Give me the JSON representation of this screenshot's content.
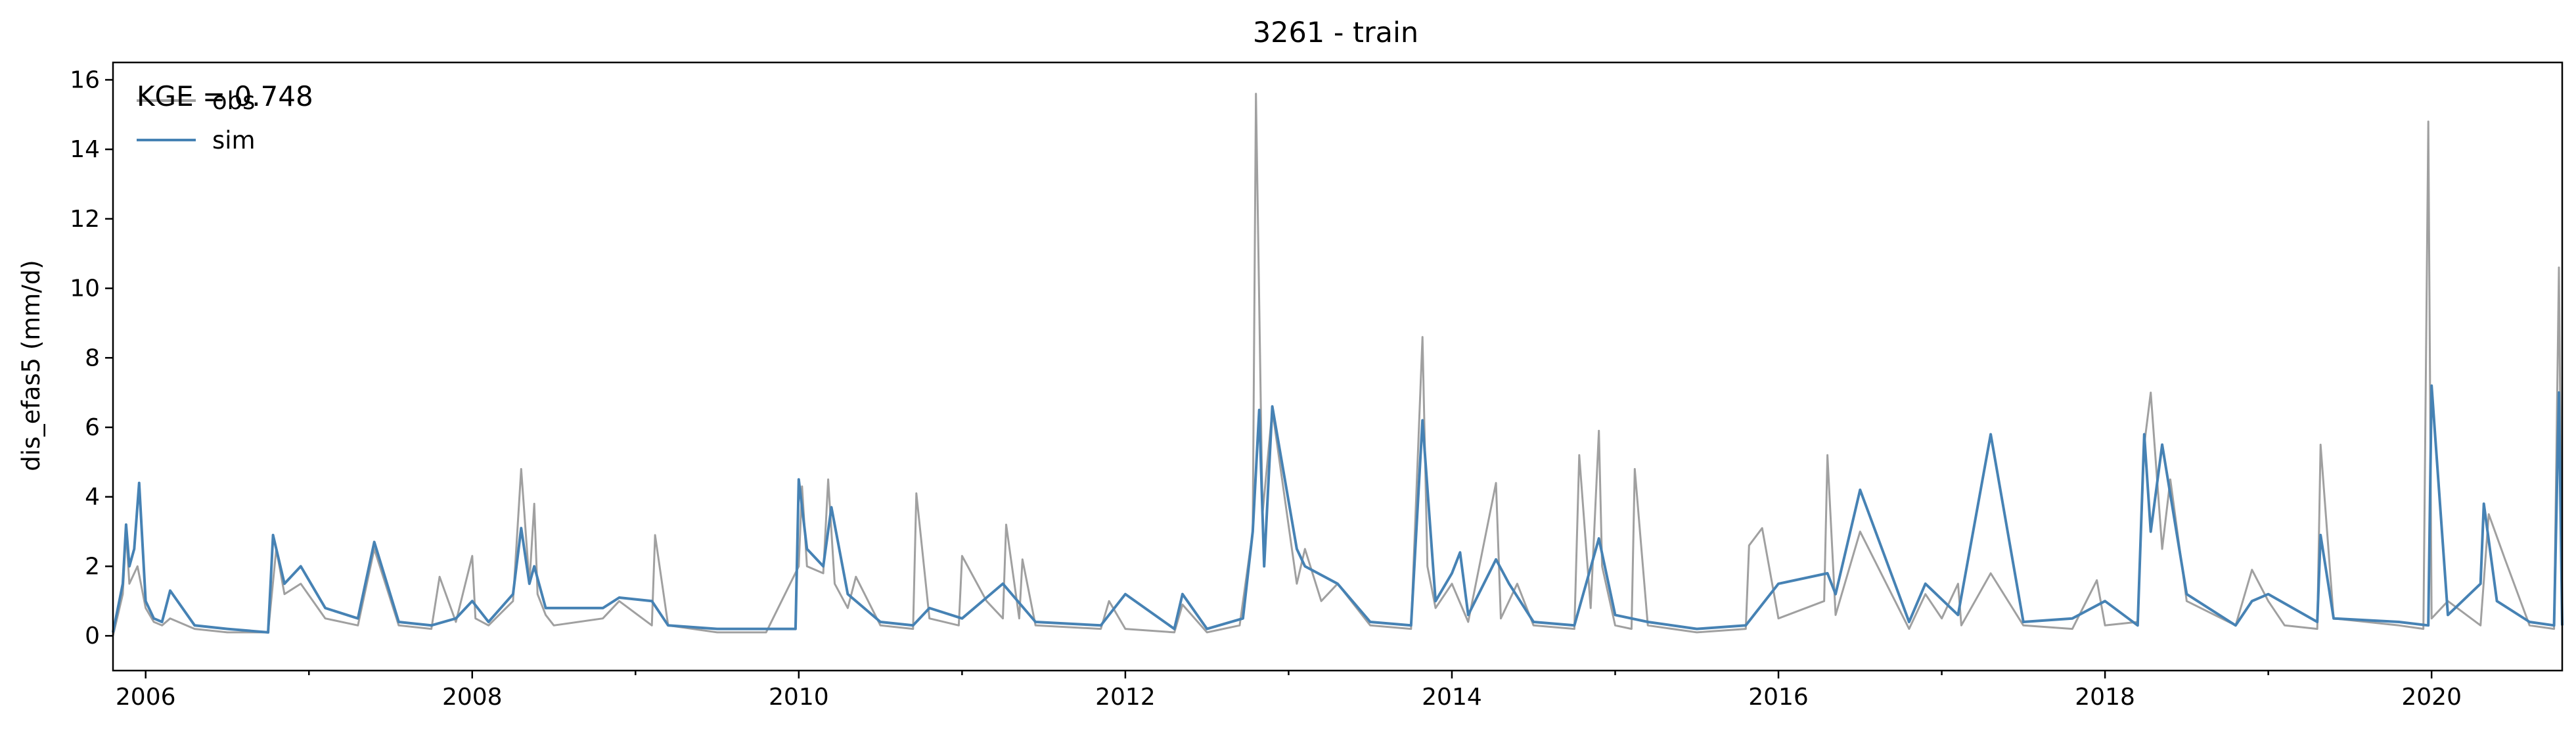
{
  "chart_data": {
    "type": "line",
    "title": "3261 - train",
    "xlabel": "",
    "ylabel": "dis_efas5 (mm/d)",
    "annotation": "KGE = 0.748",
    "xlim": [
      2005.8,
      2020.8
    ],
    "ylim": [
      -1,
      16.5
    ],
    "yticks": [
      0,
      2,
      4,
      6,
      8,
      10,
      12,
      14,
      16
    ],
    "yticklabels": [
      "0",
      "2",
      "4",
      "6",
      "8",
      "10",
      "12",
      "14",
      "16"
    ],
    "xticks": [
      2006,
      2008,
      2010,
      2012,
      2014,
      2016,
      2018,
      2020
    ],
    "xticklabels": [
      "2006",
      "2008",
      "2010",
      "2012",
      "2014",
      "2016",
      "2018",
      "2020"
    ],
    "grid": false,
    "legend_position": "top-left",
    "series": [
      {
        "name": "obs",
        "color": "#a0a0a0",
        "x": [
          2005.8,
          2005.86,
          2005.88,
          2005.9,
          2005.95,
          2006.0,
          2006.05,
          2006.1,
          2006.15,
          2006.3,
          2006.5,
          2006.75,
          2006.8,
          2006.85,
          2006.95,
          2007.1,
          2007.3,
          2007.4,
          2007.55,
          2007.75,
          2007.8,
          2007.9,
          2008.0,
          2008.02,
          2008.1,
          2008.25,
          2008.3,
          2008.35,
          2008.38,
          2008.4,
          2008.45,
          2008.5,
          2008.8,
          2008.9,
          2009.1,
          2009.12,
          2009.2,
          2009.5,
          2009.8,
          2010.0,
          2010.02,
          2010.05,
          2010.15,
          2010.18,
          2010.22,
          2010.3,
          2010.35,
          2010.5,
          2010.7,
          2010.72,
          2010.8,
          2010.98,
          2011.0,
          2011.15,
          2011.25,
          2011.27,
          2011.35,
          2011.37,
          2011.45,
          2011.85,
          2011.9,
          2012.0,
          2012.3,
          2012.35,
          2012.5,
          2012.7,
          2012.78,
          2012.8,
          2012.84,
          2012.9,
          2013.05,
          2013.1,
          2013.2,
          2013.3,
          2013.5,
          2013.75,
          2013.82,
          2013.85,
          2013.9,
          2014.0,
          2014.1,
          2014.27,
          2014.3,
          2014.4,
          2014.5,
          2014.75,
          2014.78,
          2014.85,
          2014.9,
          2014.92,
          2015.0,
          2015.1,
          2015.12,
          2015.2,
          2015.5,
          2015.8,
          2015.82,
          2015.9,
          2016.0,
          2016.28,
          2016.3,
          2016.35,
          2016.5,
          2016.8,
          2016.9,
          2017.0,
          2017.1,
          2017.12,
          2017.3,
          2017.5,
          2017.8,
          2017.95,
          2018.0,
          2018.2,
          2018.24,
          2018.28,
          2018.35,
          2018.4,
          2018.5,
          2018.8,
          2018.9,
          2019.0,
          2019.1,
          2019.3,
          2019.32,
          2019.4,
          2019.8,
          2019.95,
          2019.98,
          2020.0,
          2020.1,
          2020.3,
          2020.35,
          2020.45,
          2020.6,
          2020.75,
          2020.78,
          2020.8
        ],
        "y": [
          0.0,
          1.2,
          3.0,
          1.5,
          2.0,
          0.8,
          0.4,
          0.3,
          0.5,
          0.2,
          0.1,
          0.1,
          2.5,
          1.2,
          1.5,
          0.5,
          0.3,
          2.5,
          0.3,
          0.2,
          1.7,
          0.4,
          2.3,
          0.5,
          0.3,
          1.0,
          4.8,
          1.5,
          3.8,
          1.2,
          0.6,
          0.3,
          0.5,
          1.0,
          0.3,
          2.9,
          0.3,
          0.1,
          0.1,
          2.0,
          4.3,
          2.0,
          1.8,
          4.5,
          1.5,
          0.8,
          1.7,
          0.3,
          0.2,
          4.1,
          0.5,
          0.3,
          2.3,
          1.0,
          0.5,
          3.2,
          0.5,
          2.2,
          0.3,
          0.2,
          1.0,
          0.2,
          0.1,
          0.9,
          0.1,
          0.3,
          3.0,
          15.6,
          3.5,
          6.5,
          1.5,
          2.5,
          1.0,
          1.5,
          0.3,
          0.2,
          8.6,
          2.0,
          0.8,
          1.5,
          0.4,
          4.4,
          0.5,
          1.5,
          0.3,
          0.2,
          5.2,
          0.8,
          5.9,
          2.0,
          0.3,
          0.2,
          4.8,
          0.3,
          0.1,
          0.2,
          2.6,
          3.1,
          0.5,
          1.0,
          5.2,
          0.6,
          3.0,
          0.2,
          1.2,
          0.5,
          1.5,
          0.3,
          1.8,
          0.3,
          0.2,
          1.6,
          0.3,
          0.4,
          5.5,
          7.0,
          2.5,
          4.5,
          1.0,
          0.3,
          1.9,
          1.0,
          0.3,
          0.2,
          5.5,
          0.5,
          0.3,
          0.2,
          14.8,
          0.5,
          1.0,
          0.3,
          3.5,
          2.2,
          0.3,
          0.2,
          10.6,
          0.3
        ]
      },
      {
        "name": "sim",
        "color": "#4682b4",
        "x": [
          2005.8,
          2005.86,
          2005.88,
          2005.9,
          2005.93,
          2005.96,
          2006.0,
          2006.05,
          2006.1,
          2006.15,
          2006.3,
          2006.5,
          2006.75,
          2006.78,
          2006.85,
          2006.95,
          2007.1,
          2007.3,
          2007.4,
          2007.55,
          2007.75,
          2007.9,
          2008.0,
          2008.1,
          2008.25,
          2008.3,
          2008.35,
          2008.38,
          2008.45,
          2008.8,
          2008.9,
          2009.1,
          2009.2,
          2009.5,
          2009.98,
          2010.0,
          2010.05,
          2010.15,
          2010.2,
          2010.3,
          2010.5,
          2010.7,
          2010.8,
          2011.0,
          2011.25,
          2011.45,
          2011.85,
          2012.0,
          2012.3,
          2012.35,
          2012.5,
          2012.72,
          2012.78,
          2012.82,
          2012.85,
          2012.9,
          2013.05,
          2013.1,
          2013.3,
          2013.5,
          2013.75,
          2013.82,
          2013.9,
          2014.0,
          2014.05,
          2014.1,
          2014.27,
          2014.35,
          2014.5,
          2014.75,
          2014.9,
          2015.0,
          2015.2,
          2015.5,
          2015.8,
          2016.0,
          2016.3,
          2016.35,
          2016.5,
          2016.8,
          2016.9,
          2017.1,
          2017.3,
          2017.5,
          2017.8,
          2018.0,
          2018.2,
          2018.24,
          2018.28,
          2018.35,
          2018.5,
          2018.8,
          2018.9,
          2019.0,
          2019.3,
          2019.32,
          2019.4,
          2019.8,
          2019.98,
          2020.0,
          2020.1,
          2020.3,
          2020.32,
          2020.4,
          2020.6,
          2020.75,
          2020.78,
          2020.8
        ],
        "y": [
          0.1,
          1.5,
          3.2,
          2.0,
          2.5,
          4.4,
          1.0,
          0.5,
          0.4,
          1.3,
          0.3,
          0.2,
          0.1,
          2.9,
          1.5,
          2.0,
          0.8,
          0.5,
          2.7,
          0.4,
          0.3,
          0.5,
          1.0,
          0.4,
          1.2,
          3.1,
          1.5,
          2.0,
          0.8,
          0.8,
          1.1,
          1.0,
          0.3,
          0.2,
          0.2,
          4.5,
          2.5,
          2.0,
          3.7,
          1.2,
          0.4,
          0.3,
          0.8,
          0.5,
          1.5,
          0.4,
          0.3,
          1.2,
          0.2,
          1.2,
          0.2,
          0.5,
          3.0,
          6.5,
          2.0,
          6.6,
          2.5,
          2.0,
          1.5,
          0.4,
          0.3,
          6.2,
          1.0,
          1.8,
          2.4,
          0.6,
          2.2,
          1.5,
          0.4,
          0.3,
          2.8,
          0.6,
          0.4,
          0.2,
          0.3,
          1.5,
          1.8,
          1.2,
          4.2,
          0.4,
          1.5,
          0.6,
          5.8,
          0.4,
          0.5,
          1.0,
          0.3,
          5.8,
          3.0,
          5.5,
          1.2,
          0.3,
          1.0,
          1.2,
          0.4,
          2.9,
          0.5,
          0.4,
          0.3,
          7.2,
          0.6,
          1.5,
          3.8,
          1.0,
          0.4,
          0.3,
          7.0,
          0.3
        ]
      }
    ]
  }
}
